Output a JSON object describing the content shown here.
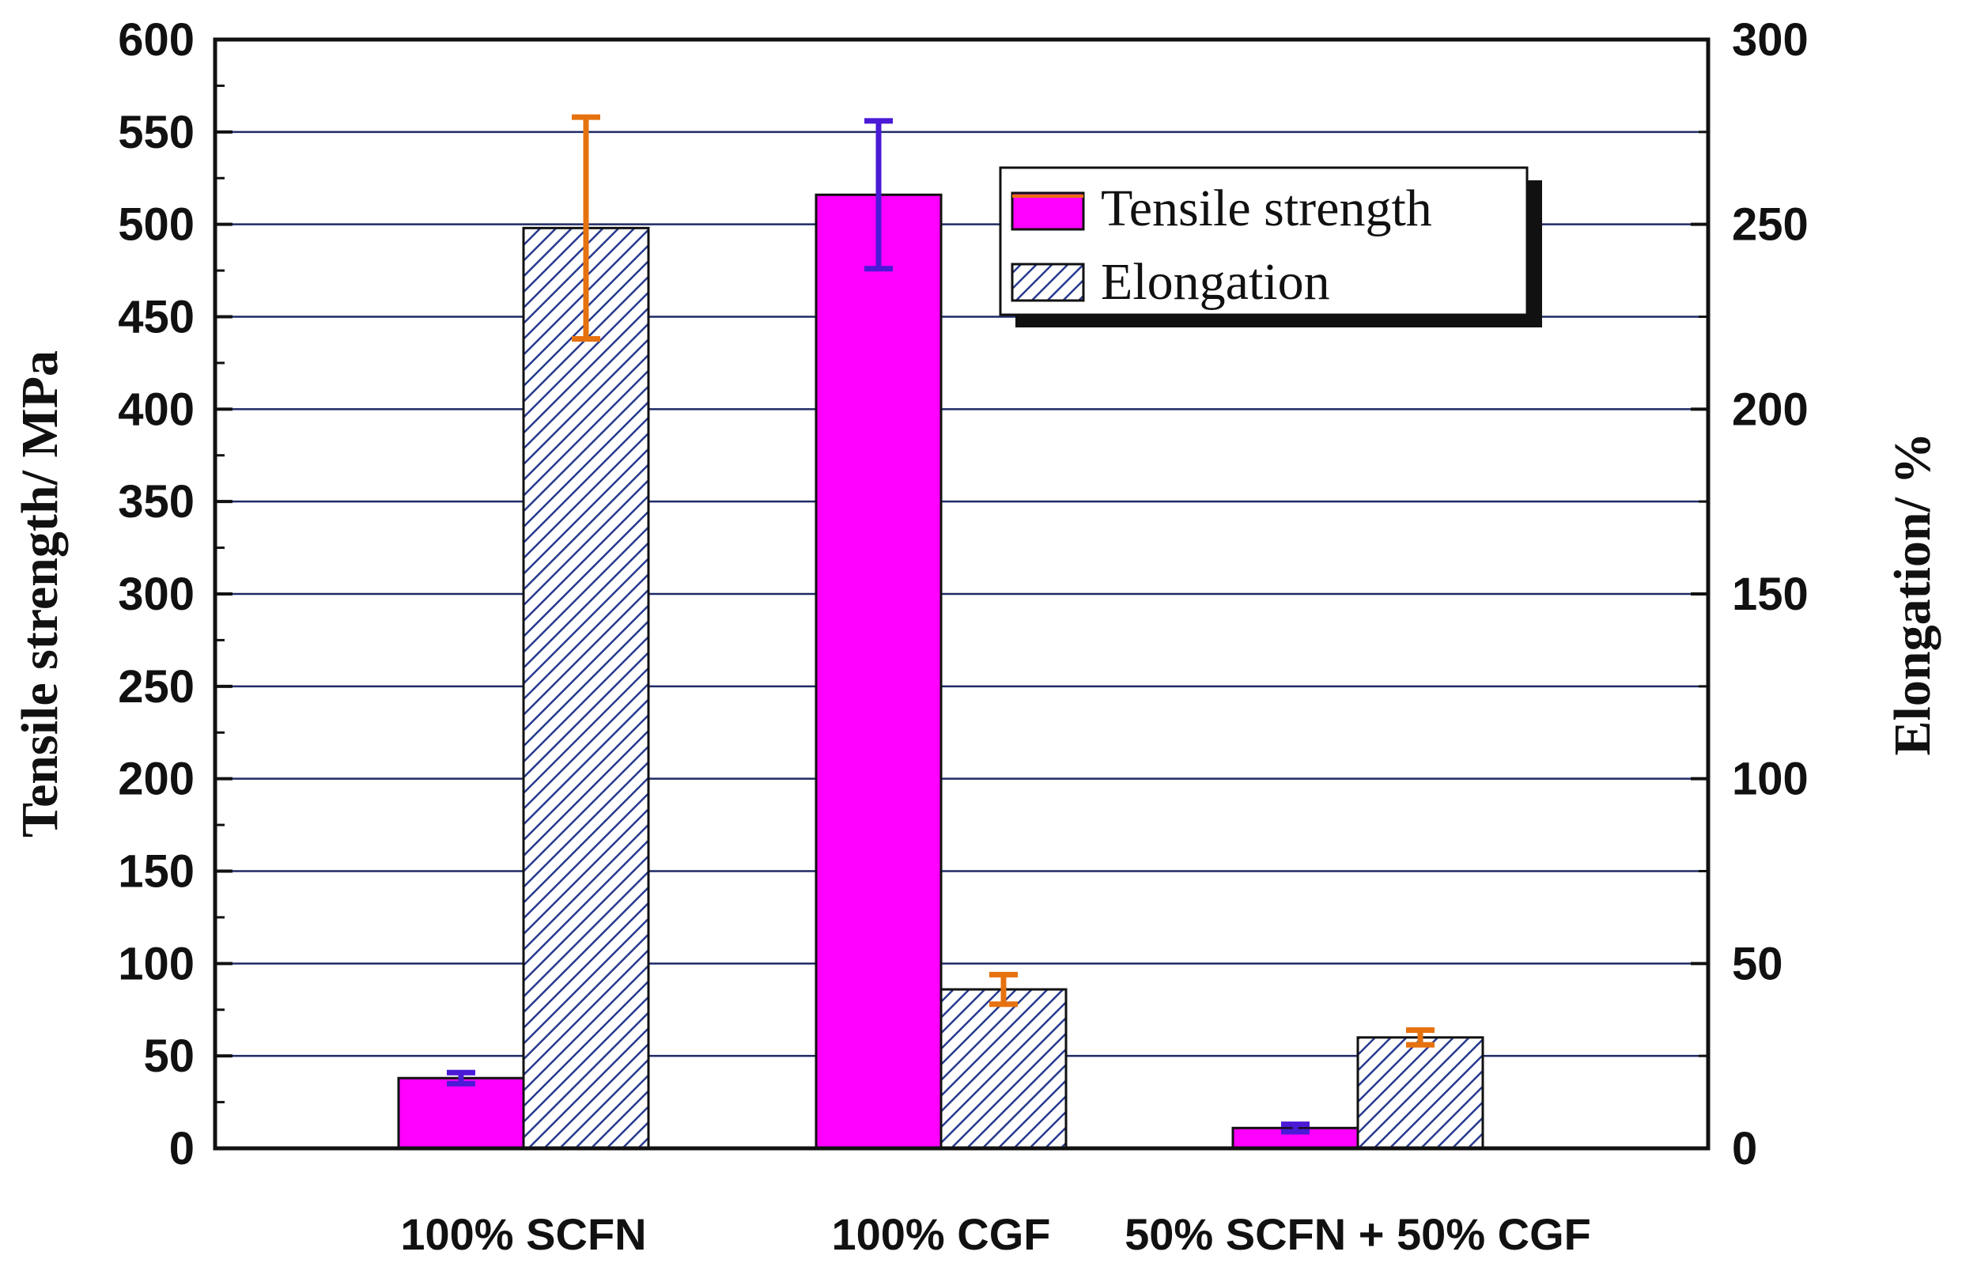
{
  "chart_data": {
    "type": "bar",
    "categories": [
      "100% SCFN",
      "100% CGF",
      "50% SCFN + 50% CGF"
    ],
    "series": [
      {
        "name": "Tensile strength",
        "axis": "left",
        "values": [
          38,
          516,
          11
        ],
        "errors": [
          3,
          40,
          2
        ],
        "color": "#ff00ff",
        "error_color": "#4b1ad6"
      },
      {
        "name": "Elongation",
        "axis": "right",
        "values": [
          249,
          43,
          30
        ],
        "errors": [
          30,
          4,
          2
        ],
        "color": "#283a8f",
        "error_color": "#e6720f",
        "pattern": "diagonal-hatch"
      }
    ],
    "ylabel": "Tensile strength/ MPa",
    "ylim": [
      0,
      600
    ],
    "yticks": [
      0,
      50,
      100,
      150,
      200,
      250,
      300,
      350,
      400,
      450,
      500,
      550,
      600
    ],
    "y2label": "Elongation/ %",
    "y2lim": [
      0,
      300
    ],
    "y2ticks": [
      0,
      50,
      100,
      150,
      200,
      250,
      300
    ],
    "grid": true,
    "legend_position": "top-right"
  }
}
